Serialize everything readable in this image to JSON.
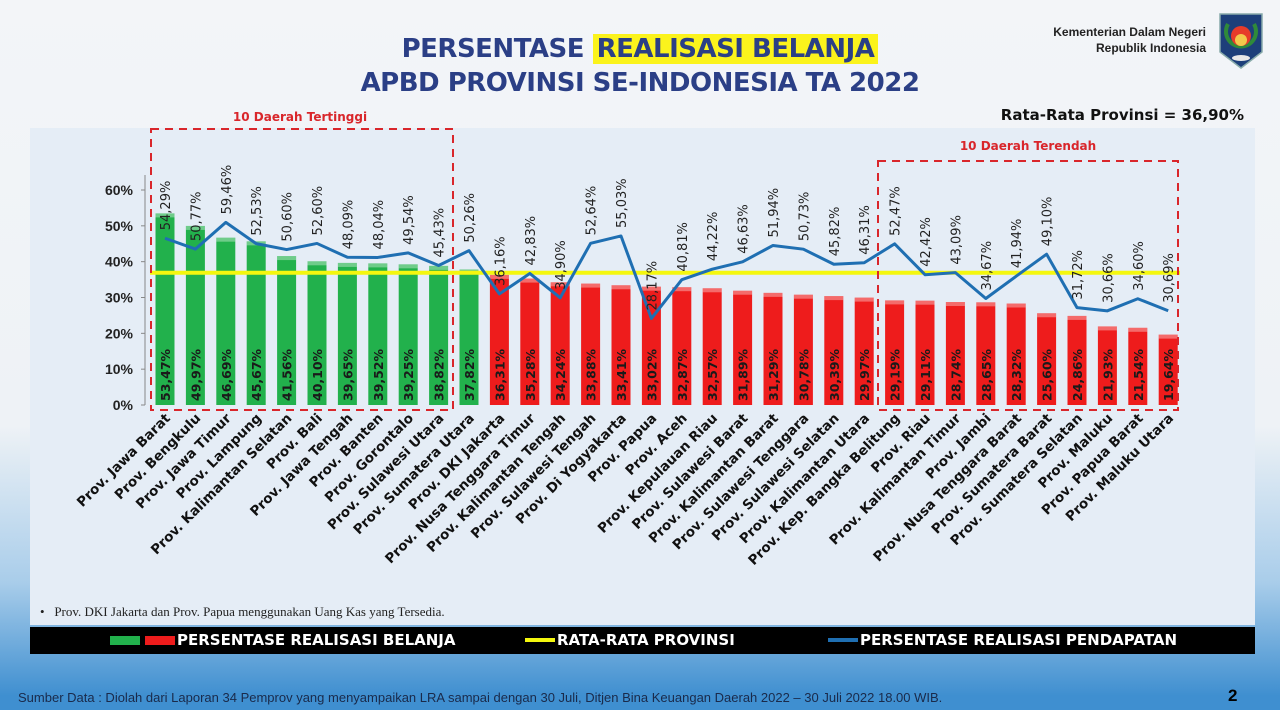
{
  "header": {
    "title_line1_prefix": "PERSENTASE",
    "title_line1_highlight": "REALISASI BELANJA",
    "title_line2": "APBD PROVINSI SE-INDONESIA TA 2022",
    "ministry_line1": "Kementerian Dalam Negeri",
    "ministry_line2": "Republik Indonesia",
    "average_label": "Rata-Rata Provinsi = 36,90%"
  },
  "annotations": {
    "top10": "10 Daerah Tertinggi",
    "bottom10": "10 Daerah Terendah",
    "note": "Prov. DKI Jakarta dan Prov. Papua menggunakan Uang Kas yang Tersedia."
  },
  "legend": {
    "belanja": "PERSENTASE REALISASI BELANJA",
    "rata": "RATA-RATA PROVINSI",
    "pendapatan": "PERSENTASE REALISASI PENDAPATAN"
  },
  "footer": {
    "source": "Sumber Data : Diolah dari Laporan 34 Pemprov yang menyampaikan LRA sampai dengan 30 Juli, Ditjen Bina Keuangan Daerah 2022 – 30 Juli 2022  18.00 WIB.",
    "page_number": "2"
  },
  "chart_data": {
    "type": "bar",
    "categories": [
      "Prov. Jawa Barat",
      "Prov. Bengkulu",
      "Prov. Jawa Timur",
      "Prov. Lampung",
      "Prov. Kalimantan Selatan",
      "Prov. Bali",
      "Prov. Jawa Tengah",
      "Prov. Banten",
      "Prov. Gorontalo",
      "Prov. Sulawesi Utara",
      "Prov. Sumatera Utara",
      "Prov. DKI Jakarta",
      "Prov. Nusa Tenggara Timur",
      "Prov. Kalimantan Tengah",
      "Prov. Sulawesi Tengah",
      "Prov. Di Yogyakarta",
      "Prov. Papua",
      "Prov. Aceh",
      "Prov. Kepulauan Riau",
      "Prov. Sulawesi Barat",
      "Prov. Kalimantan Barat",
      "Prov. Sulawesi Tenggara",
      "Prov. Sulawesi Selatan",
      "Prov. Kalimantan Utara",
      "Prov. Kep. Bangka Belitung",
      "Prov. Riau",
      "Prov. Kalimantan Timur",
      "Prov. Jambi",
      "Prov. Nusa Tenggara Barat",
      "Prov. Sumatera Barat",
      "Prov. Sumatera Selatan",
      "Prov. Maluku",
      "Prov. Papua Barat",
      "Prov. Maluku Utara"
    ],
    "series": [
      {
        "name": "PERSENTASE REALISASI BELANJA",
        "type": "bar",
        "values": [
          53.47,
          49.97,
          46.69,
          45.67,
          41.56,
          40.1,
          39.65,
          39.52,
          39.25,
          38.82,
          37.82,
          36.31,
          35.28,
          34.24,
          33.88,
          33.41,
          33.02,
          32.87,
          32.57,
          31.89,
          31.29,
          30.78,
          30.39,
          29.97,
          29.19,
          29.11,
          28.74,
          28.65,
          28.32,
          25.6,
          24.86,
          21.93,
          21.54,
          19.64
        ],
        "labels": [
          "53,47%",
          "49,97%",
          "46,69%",
          "45,67%",
          "41,56%",
          "40,10%",
          "39,65%",
          "39,52%",
          "39,25%",
          "38,82%",
          "37,82%",
          "36,31%",
          "35,28%",
          "34,24%",
          "33,88%",
          "33,41%",
          "33,02%",
          "32,87%",
          "32,57%",
          "31,89%",
          "31,29%",
          "30,78%",
          "30,39%",
          "29,97%",
          "29,19%",
          "29,11%",
          "28,74%",
          "28,65%",
          "28,32%",
          "25,60%",
          "24,86%",
          "21,93%",
          "21,54%",
          "19,64%"
        ]
      },
      {
        "name": "PERSENTASE REALISASI PENDAPATAN",
        "type": "line",
        "values": [
          54.29,
          50.77,
          59.46,
          52.53,
          50.6,
          52.6,
          48.09,
          48.04,
          49.54,
          45.43,
          50.26,
          36.16,
          42.83,
          34.9,
          52.64,
          55.03,
          28.17,
          40.81,
          44.22,
          46.63,
          51.94,
          50.73,
          45.82,
          46.31,
          52.47,
          42.42,
          43.09,
          34.67,
          41.94,
          49.1,
          31.72,
          30.66,
          34.6,
          30.69
        ],
        "labels": [
          "54,29%",
          "50,77%",
          "59,46%",
          "52,53%",
          "50,60%",
          "52,60%",
          "48,09%",
          "48,04%",
          "49,54%",
          "45,43%",
          "50,26%",
          "36,16%",
          "42,83%",
          "34,90%",
          "52,64%",
          "55,03%",
          "28,17%",
          "40,81%",
          "44,22%",
          "46,63%",
          "51,94%",
          "50,73%",
          "45,82%",
          "46,31%",
          "52,47%",
          "42,42%",
          "43,09%",
          "34,67%",
          "41,94%",
          "49,10%",
          "31,72%",
          "30,66%",
          "34,60%",
          "30,69%"
        ]
      },
      {
        "name": "RATA-RATA PROVINSI",
        "type": "hline",
        "value": 36.9
      }
    ],
    "yticks": [
      "0%",
      "10%",
      "20%",
      "30%",
      "40%",
      "50%",
      "60%"
    ],
    "ylim": [
      0,
      60
    ],
    "grid": false,
    "legend_position": "bottom",
    "colors": {
      "top_group": "#22b14c",
      "other": "#ee1c1c",
      "line": "#1f6fb2",
      "average": "#f4f70e",
      "highlight_box": "#d9262b"
    },
    "top_group_count": 11
  }
}
